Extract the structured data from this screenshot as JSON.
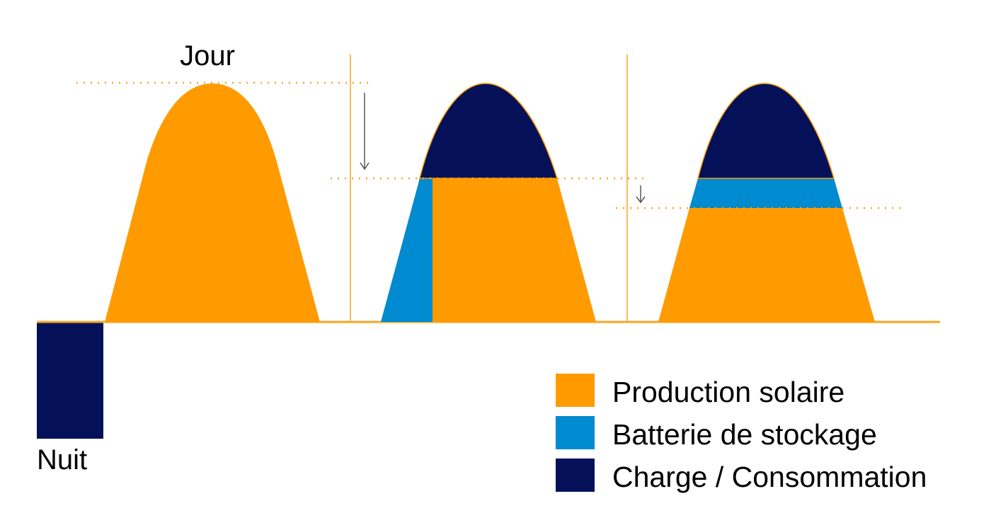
{
  "colors": {
    "solar": "#FF9B00",
    "battery": "#008ACF",
    "load": "#041159",
    "guide": "#F5A623",
    "arrow": "#555555",
    "text": "#000000"
  },
  "labels": {
    "day": "Jour",
    "night": "Nuit"
  },
  "legend": [
    {
      "label": "Production solaire",
      "color": "#FF9B00",
      "icon": "solar-production-swatch"
    },
    {
      "label": "Batterie de stockage",
      "color": "#008ACF",
      "icon": "battery-storage-swatch"
    },
    {
      "label": "Charge / Consommation",
      "color": "#041159",
      "icon": "load-consumption-swatch"
    }
  ]
}
